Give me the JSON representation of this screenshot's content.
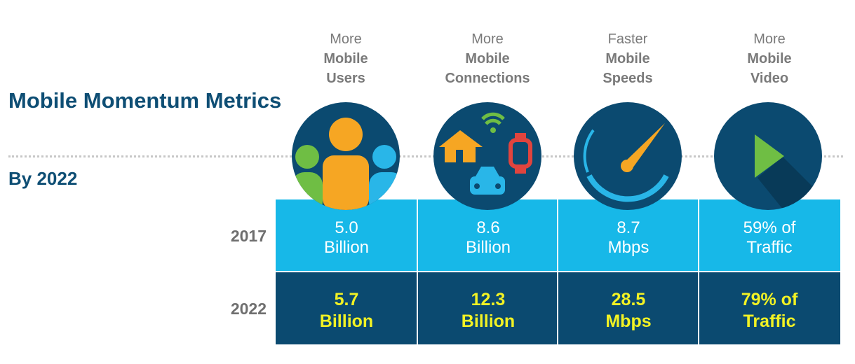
{
  "title": "Mobile Momentum Metrics",
  "subtitle": "By 2022",
  "columns": [
    {
      "top": "More",
      "middle": "Mobile",
      "bottom": "Users",
      "icon": "users-icon"
    },
    {
      "top": "More",
      "middle": "Mobile",
      "bottom": "Connections",
      "icon": "devices-icon"
    },
    {
      "top": "Faster",
      "middle": "Mobile",
      "bottom": "Speeds",
      "icon": "speedometer-icon"
    },
    {
      "top": "More",
      "middle": "Mobile",
      "bottom": "Video",
      "icon": "video-play-icon"
    }
  ],
  "rows": [
    {
      "label": "2017",
      "cells": [
        {
          "line1": "5.0",
          "line2": "Billion"
        },
        {
          "line1": "8.6",
          "line2": "Billion"
        },
        {
          "line1": "8.7",
          "line2": "Mbps"
        },
        {
          "line1": "59% of",
          "line2": "Traffic"
        }
      ]
    },
    {
      "label": "2022",
      "cells": [
        {
          "line1": "5.7",
          "line2": "Billion"
        },
        {
          "line1": "12.3",
          "line2": "Billion"
        },
        {
          "line1": "28.5",
          "line2": "Mbps"
        },
        {
          "line1": "79% of",
          "line2": "Traffic"
        }
      ]
    }
  ],
  "colors": {
    "title": "#0e4e74",
    "row_2017_bg": "#17b8e8",
    "row_2022_bg": "#0b4a70",
    "value_2022": "#f2f224",
    "icon_bg": "#0b4a70"
  },
  "chart_data": {
    "type": "table",
    "title": "Mobile Momentum Metrics",
    "subtitle": "By 2022",
    "categories": [
      "More Mobile Users",
      "More Mobile Connections",
      "Faster Mobile Speeds",
      "More Mobile Video"
    ],
    "series": [
      {
        "name": "2017",
        "values": [
          5.0,
          8.6,
          8.7,
          59
        ]
      },
      {
        "name": "2022",
        "values": [
          5.7,
          12.3,
          28.5,
          79
        ]
      }
    ],
    "units": [
      "Billion",
      "Billion",
      "Mbps",
      "% of Traffic"
    ]
  }
}
